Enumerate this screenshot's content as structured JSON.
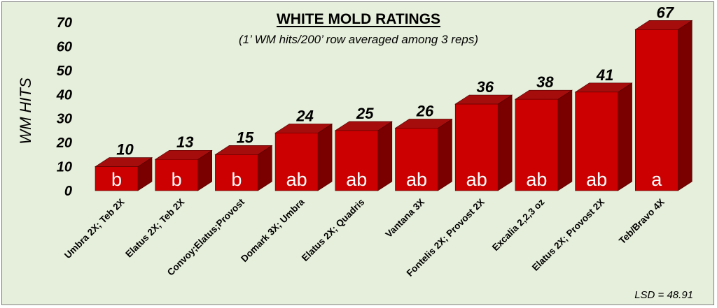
{
  "chart_data": {
    "type": "bar",
    "title": "WHITE MOLD RATINGS",
    "subtitle": "(1’ WM hits/200’ row averaged among 3 reps)",
    "ylabel": "WM HITS",
    "xlabel": "",
    "ylim": [
      0,
      70
    ],
    "yticks": [
      0,
      10,
      20,
      30,
      40,
      50,
      60,
      70
    ],
    "grid": false,
    "legend": "none",
    "categories": [
      "Umbra 2X; Teb 2X",
      "Elatus 2X; Teb 2X",
      "Convoy;Elatus;Provost",
      "Domark 3X; Umbra",
      "Elatus 2X; Quadris",
      "Vantana 3X",
      "Fontelis 2X; Provost 2X",
      "Excalia 2,2,3 oz",
      "Elatus 2X; Provost 2X",
      "Teb/Bravo 4X"
    ],
    "values": [
      10,
      13,
      15,
      24,
      25,
      26,
      36,
      38,
      41,
      67
    ],
    "letters": [
      "b",
      "b",
      "b",
      "ab",
      "ab",
      "ab",
      "ab",
      "ab",
      "ab",
      "a"
    ],
    "annotation": "LSD = 48.91",
    "colors": {
      "bar_front": "#cc0000",
      "bar_top": "#a50d0d",
      "bar_side": "#7a0000",
      "background": "#e6efdb"
    }
  }
}
